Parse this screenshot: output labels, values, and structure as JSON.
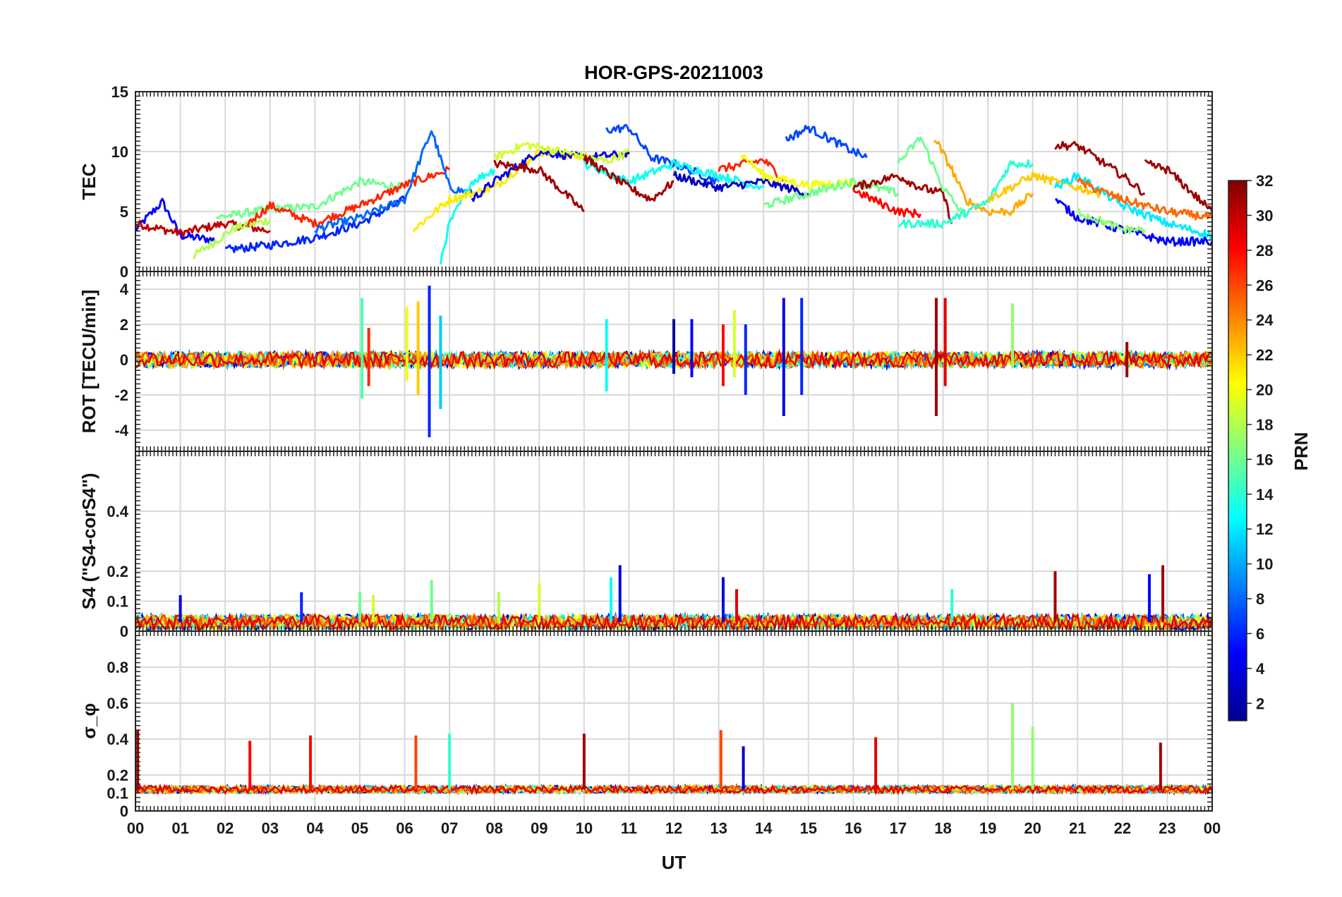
{
  "chart_data": {
    "type": "line",
    "title": "HOR-GPS-20211003",
    "xlabel": "UT",
    "x_tick_labels": [
      "00",
      "01",
      "02",
      "03",
      "04",
      "05",
      "06",
      "07",
      "08",
      "09",
      "10",
      "11",
      "12",
      "13",
      "14",
      "15",
      "16",
      "17",
      "18",
      "19",
      "20",
      "21",
      "22",
      "23",
      "00"
    ],
    "x_range_hours": [
      0,
      24
    ],
    "colorbar": {
      "label": "PRN",
      "range": [
        1,
        32
      ],
      "tick_labels": [
        "2",
        "4",
        "6",
        "8",
        "10",
        "12",
        "14",
        "16",
        "18",
        "20",
        "22",
        "24",
        "26",
        "28",
        "30",
        "32"
      ],
      "colormap": "jet"
    },
    "panels": [
      {
        "name": "TEC",
        "ylabel": "TEC",
        "ylim": [
          0,
          15
        ],
        "y_tick_labels": [
          "0",
          "5",
          "10",
          "15"
        ],
        "series": [
          {
            "prn": 5,
            "points": [
              [
                0,
                3.5
              ],
              [
                0.6,
                5.8
              ],
              [
                1,
                3
              ],
              [
                1.8,
                2.6
              ]
            ]
          },
          {
            "prn": 30,
            "points": [
              [
                0,
                4
              ],
              [
                1,
                3.2
              ],
              [
                2,
                4
              ],
              [
                3,
                3.4
              ]
            ]
          },
          {
            "prn": 18,
            "points": [
              [
                1.3,
                1.3
              ],
              [
                2.2,
                3.6
              ],
              [
                3,
                4.3
              ]
            ]
          },
          {
            "prn": 16,
            "points": [
              [
                1.8,
                4.5
              ],
              [
                3,
                5.2
              ],
              [
                4,
                5.4
              ],
              [
                5,
                7.5
              ],
              [
                6,
                7
              ]
            ]
          },
          {
            "prn": 6,
            "points": [
              [
                2,
                1.8
              ],
              [
                3,
                2.2
              ],
              [
                4,
                2.8
              ],
              [
                5,
                4
              ],
              [
                6,
                6
              ]
            ]
          },
          {
            "prn": 27,
            "points": [
              [
                2.5,
                4
              ],
              [
                3,
                5.5
              ],
              [
                4,
                4
              ],
              [
                5,
                5.5
              ],
              [
                6,
                7.2
              ],
              [
                7,
                8.5
              ]
            ]
          },
          {
            "prn": 8,
            "points": [
              [
                4,
                3.5
              ],
              [
                5,
                4.5
              ],
              [
                6,
                6
              ],
              [
                6.6,
                11.8
              ],
              [
                7,
                7
              ],
              [
                7.5,
                6.5
              ]
            ]
          },
          {
            "prn": 13,
            "points": [
              [
                6.8,
                0.8
              ],
              [
                7,
                4
              ],
              [
                7.5,
                7.5
              ],
              [
                8,
                8.5
              ]
            ]
          },
          {
            "prn": 21,
            "points": [
              [
                6.2,
                3.5
              ],
              [
                7,
                6
              ],
              [
                8,
                7
              ],
              [
                9,
                10
              ],
              [
                10,
                9.5
              ]
            ]
          },
          {
            "prn": 4,
            "points": [
              [
                7.5,
                6
              ],
              [
                8,
                7.5
              ],
              [
                9,
                10
              ],
              [
                10,
                9.5
              ],
              [
                11,
                9.8
              ]
            ]
          },
          {
            "prn": 19,
            "points": [
              [
                8,
                9.5
              ],
              [
                8.7,
                10.6
              ],
              [
                9.5,
                10
              ],
              [
                10.5,
                9.2
              ],
              [
                11,
                10
              ]
            ]
          },
          {
            "prn": 31,
            "points": [
              [
                8,
                9
              ],
              [
                9,
                8.5
              ],
              [
                10,
                5
              ]
            ]
          },
          {
            "prn": 7,
            "points": [
              [
                10.5,
                11.8
              ],
              [
                11,
                12
              ],
              [
                11.5,
                9.5
              ],
              [
                12,
                9
              ],
              [
                13,
                7.5
              ]
            ]
          },
          {
            "prn": 13,
            "points": [
              [
                10,
                9
              ],
              [
                11,
                7.5
              ],
              [
                12,
                9
              ],
              [
                13,
                8
              ],
              [
                14,
                7
              ]
            ]
          },
          {
            "prn": 31,
            "points": [
              [
                10,
                9.5
              ],
              [
                11,
                7
              ],
              [
                11.5,
                6
              ],
              [
                12,
                7.5
              ]
            ]
          },
          {
            "prn": 3,
            "points": [
              [
                12,
                8
              ],
              [
                13,
                7
              ],
              [
                14,
                7.5
              ],
              [
                15,
                6.5
              ]
            ]
          },
          {
            "prn": 27,
            "points": [
              [
                13,
                8.5
              ],
              [
                14,
                9.3
              ],
              [
                14.5,
                7.5
              ]
            ]
          },
          {
            "prn": 20,
            "points": [
              [
                13.5,
                9.8
              ],
              [
                14,
                8
              ],
              [
                15,
                7.2
              ],
              [
                16,
                7.5
              ]
            ]
          },
          {
            "prn": 7,
            "points": [
              [
                14.5,
                11
              ],
              [
                15,
                12
              ],
              [
                16,
                10
              ],
              [
                16.3,
                9.5
              ]
            ]
          },
          {
            "prn": 16,
            "points": [
              [
                14,
                5.5
              ],
              [
                15,
                6.5
              ],
              [
                16,
                7.5
              ],
              [
                17,
                6.5
              ]
            ]
          },
          {
            "prn": 28,
            "points": [
              [
                16,
                6.8
              ],
              [
                17,
                5
              ],
              [
                17.5,
                4.8
              ]
            ]
          },
          {
            "prn": 31,
            "points": [
              [
                16,
                7
              ],
              [
                17,
                8
              ],
              [
                17.5,
                7
              ],
              [
                18,
                6.5
              ],
              [
                18.2,
                4
              ]
            ]
          },
          {
            "prn": 16,
            "points": [
              [
                17,
                9
              ],
              [
                17.5,
                11.2
              ],
              [
                18,
                7
              ],
              [
                18.5,
                4.5
              ]
            ]
          },
          {
            "prn": 23,
            "points": [
              [
                17.8,
                11.2
              ],
              [
                18.2,
                8.5
              ],
              [
                18.5,
                6
              ],
              [
                19,
                5
              ],
              [
                19.5,
                5
              ],
              [
                20,
                6.5
              ]
            ]
          },
          {
            "prn": 14,
            "points": [
              [
                17,
                4
              ],
              [
                18,
                4
              ],
              [
                19,
                5.8
              ],
              [
                19.5,
                9
              ],
              [
                20,
                9
              ]
            ]
          },
          {
            "prn": 22,
            "points": [
              [
                19,
                6
              ],
              [
                20,
                8
              ],
              [
                21,
                7
              ],
              [
                21.5,
                6.5
              ]
            ]
          },
          {
            "prn": 31,
            "points": [
              [
                20.5,
                10.5
              ],
              [
                21,
                10.5
              ],
              [
                22,
                8
              ],
              [
                22.5,
                6.5
              ]
            ]
          },
          {
            "prn": 12,
            "points": [
              [
                20.5,
                7
              ],
              [
                21,
                8
              ],
              [
                22,
                5.5
              ],
              [
                23,
                4
              ],
              [
                24,
                3
              ]
            ]
          },
          {
            "prn": 5,
            "points": [
              [
                20.5,
                6
              ],
              [
                21,
                4.5
              ],
              [
                22,
                3.5
              ],
              [
                23,
                2.5
              ],
              [
                24,
                2.5
              ]
            ]
          },
          {
            "prn": 25,
            "points": [
              [
                21,
                7.5
              ],
              [
                22,
                6
              ],
              [
                23,
                5
              ],
              [
                24,
                4.5
              ]
            ]
          },
          {
            "prn": 31,
            "points": [
              [
                22.5,
                9
              ],
              [
                23,
                8.5
              ],
              [
                24,
                5
              ]
            ]
          },
          {
            "prn": 17,
            "points": [
              [
                21,
                5
              ],
              [
                22,
                3.5
              ],
              [
                22.5,
                3.5
              ]
            ]
          }
        ]
      },
      {
        "name": "ROT",
        "ylabel": "ROT [TECU/min]",
        "ylim": [
          -5.2,
          5
        ],
        "y_tick_labels": [
          "-4",
          "-2",
          "0",
          "2",
          "4"
        ],
        "spikes": [
          {
            "prn": 15,
            "x": 5.05,
            "lo": -2.2,
            "hi": 3.5
          },
          {
            "prn": 27,
            "x": 5.2,
            "lo": -1.5,
            "hi": 1.8
          },
          {
            "prn": 20,
            "x": 6.05,
            "lo": -1.2,
            "hi": 3.0
          },
          {
            "prn": 22,
            "x": 6.3,
            "lo": -2.0,
            "hi": 3.3
          },
          {
            "prn": 6,
            "x": 6.55,
            "lo": -4.4,
            "hi": 4.2
          },
          {
            "prn": 11,
            "x": 6.8,
            "lo": -2.8,
            "hi": 2.5
          },
          {
            "prn": 13,
            "x": 10.5,
            "lo": -1.8,
            "hi": 2.3
          },
          {
            "prn": 2,
            "x": 12.0,
            "lo": -0.8,
            "hi": 2.3
          },
          {
            "prn": 5,
            "x": 12.4,
            "lo": -1.0,
            "hi": 2.3
          },
          {
            "prn": 28,
            "x": 13.1,
            "lo": -1.5,
            "hi": 2.0
          },
          {
            "prn": 19,
            "x": 13.35,
            "lo": -1.0,
            "hi": 2.8
          },
          {
            "prn": 6,
            "x": 13.6,
            "lo": -2.0,
            "hi": 2.0
          },
          {
            "prn": 4,
            "x": 14.45,
            "lo": -3.2,
            "hi": 3.5
          },
          {
            "prn": 6,
            "x": 14.85,
            "lo": -2.0,
            "hi": 3.5
          },
          {
            "prn": 31,
            "x": 17.85,
            "lo": -3.2,
            "hi": 3.5
          },
          {
            "prn": 29,
            "x": 18.05,
            "lo": -1.5,
            "hi": 3.5
          },
          {
            "prn": 17,
            "x": 19.55,
            "lo": -0.5,
            "hi": 3.2
          },
          {
            "prn": 31,
            "x": 22.1,
            "lo": -1.0,
            "hi": 1.0
          }
        ]
      },
      {
        "name": "S4",
        "ylabel": "S4 (\"S4-corS4\")",
        "ylim": [
          0,
          0.6
        ],
        "y_tick_labels": [
          "0",
          "0.1",
          "0.2",
          "0.4"
        ],
        "spikes": [
          {
            "prn": 4,
            "x": 1.0,
            "hi": 0.12
          },
          {
            "prn": 6,
            "x": 3.7,
            "hi": 0.13
          },
          {
            "prn": 16,
            "x": 5.0,
            "hi": 0.13
          },
          {
            "prn": 19,
            "x": 5.3,
            "hi": 0.12
          },
          {
            "prn": 16,
            "x": 6.6,
            "hi": 0.17
          },
          {
            "prn": 18,
            "x": 8.1,
            "hi": 0.13
          },
          {
            "prn": 19,
            "x": 9.0,
            "hi": 0.16
          },
          {
            "prn": 4,
            "x": 10.8,
            "hi": 0.22
          },
          {
            "prn": 13,
            "x": 10.6,
            "hi": 0.18
          },
          {
            "prn": 4,
            "x": 13.1,
            "hi": 0.18
          },
          {
            "prn": 29,
            "x": 13.4,
            "hi": 0.14
          },
          {
            "prn": 14,
            "x": 18.2,
            "hi": 0.14
          },
          {
            "prn": 31,
            "x": 20.5,
            "hi": 0.2
          },
          {
            "prn": 5,
            "x": 22.6,
            "hi": 0.19
          },
          {
            "prn": 31,
            "x": 22.9,
            "hi": 0.22
          }
        ]
      },
      {
        "name": "sigma_phi",
        "ylabel": "σ_φ",
        "ylim": [
          0,
          1.0
        ],
        "y_tick_labels": [
          "0",
          "0.1",
          "0.2",
          "0.4",
          "0.6",
          "0.8"
        ],
        "spikes": [
          {
            "prn": 31,
            "x": 0.05,
            "hi": 0.45
          },
          {
            "prn": 28,
            "x": 2.55,
            "hi": 0.39
          },
          {
            "prn": 28,
            "x": 3.9,
            "hi": 0.42
          },
          {
            "prn": 26,
            "x": 6.25,
            "hi": 0.42
          },
          {
            "prn": 14,
            "x": 7.0,
            "hi": 0.43
          },
          {
            "prn": 31,
            "x": 10.0,
            "hi": 0.43
          },
          {
            "prn": 26,
            "x": 13.05,
            "hi": 0.45
          },
          {
            "prn": 3,
            "x": 13.55,
            "hi": 0.36
          },
          {
            "prn": 29,
            "x": 16.5,
            "hi": 0.41
          },
          {
            "prn": 17,
            "x": 19.55,
            "hi": 0.6
          },
          {
            "prn": 17,
            "x": 20.0,
            "hi": 0.47
          },
          {
            "prn": 31,
            "x": 22.85,
            "hi": 0.38
          }
        ]
      }
    ]
  }
}
